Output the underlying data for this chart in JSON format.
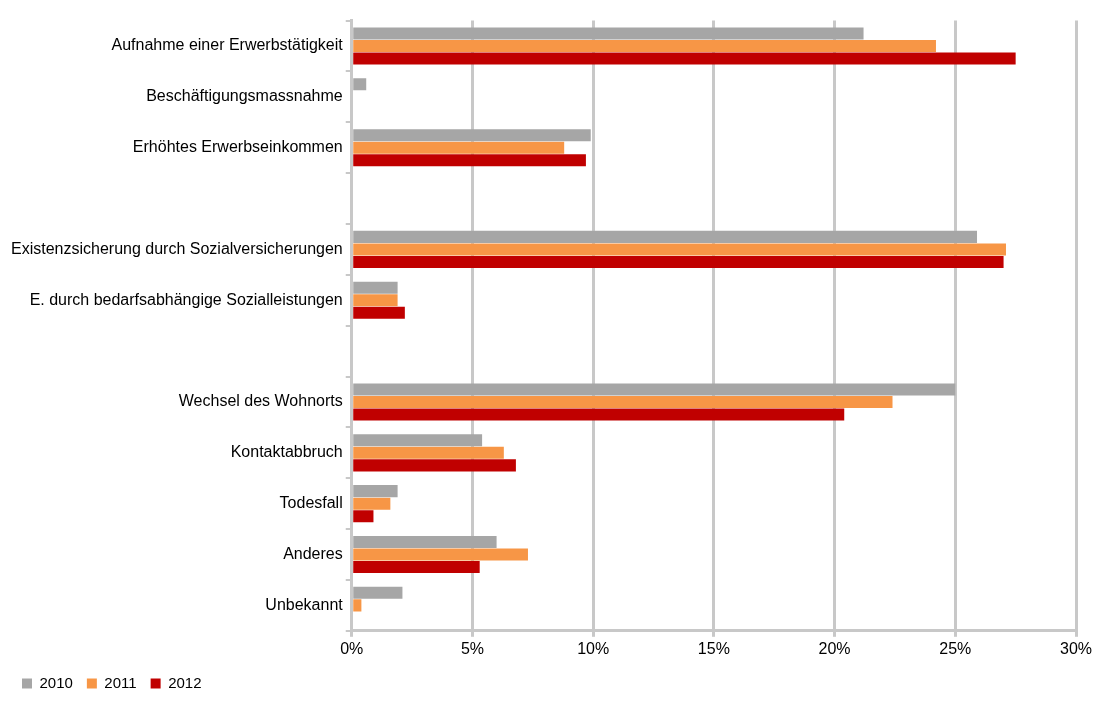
{
  "chart_data": {
    "type": "bar",
    "orientation": "horizontal",
    "categories": [
      "Aufnahme einer Erwerbstätigkeit",
      "Beschäftigungsmassnahme",
      "Erhöhtes Erwerbseinkommen",
      null,
      "Existenzsicherung durch Sozialversicherungen",
      "E. durch bedarfsabhängige Sozialleistungen",
      null,
      "Wechsel des Wohnorts",
      "Kontaktabbruch",
      "Todesfall",
      "Anderes",
      "Unbekannt"
    ],
    "series": [
      {
        "name": "2010",
        "color": "#a6a6a6",
        "values": [
          21.2,
          0.6,
          9.9,
          null,
          25.9,
          1.9,
          null,
          25.0,
          5.4,
          1.9,
          6.0,
          2.1
        ]
      },
      {
        "name": "2011",
        "color": "#f79646",
        "values": [
          24.2,
          null,
          8.8,
          null,
          27.1,
          1.9,
          null,
          22.4,
          6.3,
          1.6,
          7.3,
          0.4
        ]
      },
      {
        "name": "2012",
        "color": "#c00000",
        "values": [
          27.5,
          null,
          9.7,
          null,
          27.0,
          2.2,
          null,
          20.4,
          6.8,
          0.9,
          5.3,
          null
        ]
      }
    ],
    "xlim": [
      0,
      30
    ],
    "xticks": [
      {
        "value": 0,
        "label": "0%"
      },
      {
        "value": 5,
        "label": "5%"
      },
      {
        "value": 10,
        "label": "10%"
      },
      {
        "value": 15,
        "label": "15%"
      },
      {
        "value": 20,
        "label": "20%"
      },
      {
        "value": 25,
        "label": "25%"
      },
      {
        "value": 30,
        "label": "30%"
      }
    ],
    "grid": "x",
    "legend": "bottom left"
  }
}
